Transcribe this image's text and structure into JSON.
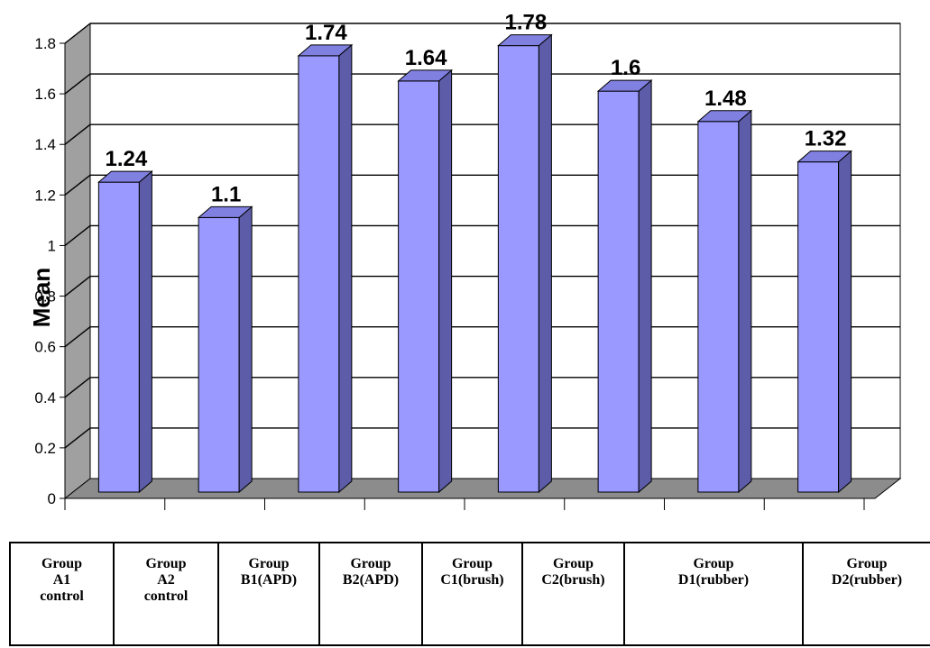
{
  "chart_data": {
    "type": "bar",
    "categories": [
      "Group A1 control",
      "Group A2 control",
      "Group B1(APD)",
      "Group B2(APD)",
      "Group C1(brush)",
      "Group C2(brush)",
      "Group D1(rubber)",
      "Group D2(rubber)"
    ],
    "values": [
      1.24,
      1.1,
      1.74,
      1.64,
      1.78,
      1.6,
      1.48,
      1.32
    ],
    "data_labels": [
      "1.24",
      "1.1",
      "1.74",
      "1.64",
      "1.78",
      "1.6",
      "1.48",
      "1.32"
    ],
    "ylabel": "Mean",
    "ylim": [
      0,
      1.8
    ],
    "y_ticks": [
      "0",
      "0.2",
      "0.4",
      "0.6",
      "0.8",
      "1",
      "1.2",
      "1.4",
      "1.6",
      "1.8"
    ],
    "grid": true,
    "bar_color": "#9999ff",
    "bar_side_color": "#5c5ca8",
    "bar_top_color": "#8080e0",
    "wall_color": "#a0a0a0",
    "floor_color": "#8c8c8c"
  },
  "table": {
    "cells": [
      [
        "Group",
        "A1",
        "control"
      ],
      [
        "Group",
        "A2",
        "control"
      ],
      [
        "Group",
        "B1(APD)"
      ],
      [
        "Group",
        "B2(APD)"
      ],
      [
        "Group",
        "C1(brush)"
      ],
      [
        "Group",
        "C2(brush)"
      ],
      [
        "Group",
        "D1(rubber)"
      ],
      [
        "Group",
        "D2(rubber)"
      ]
    ]
  }
}
